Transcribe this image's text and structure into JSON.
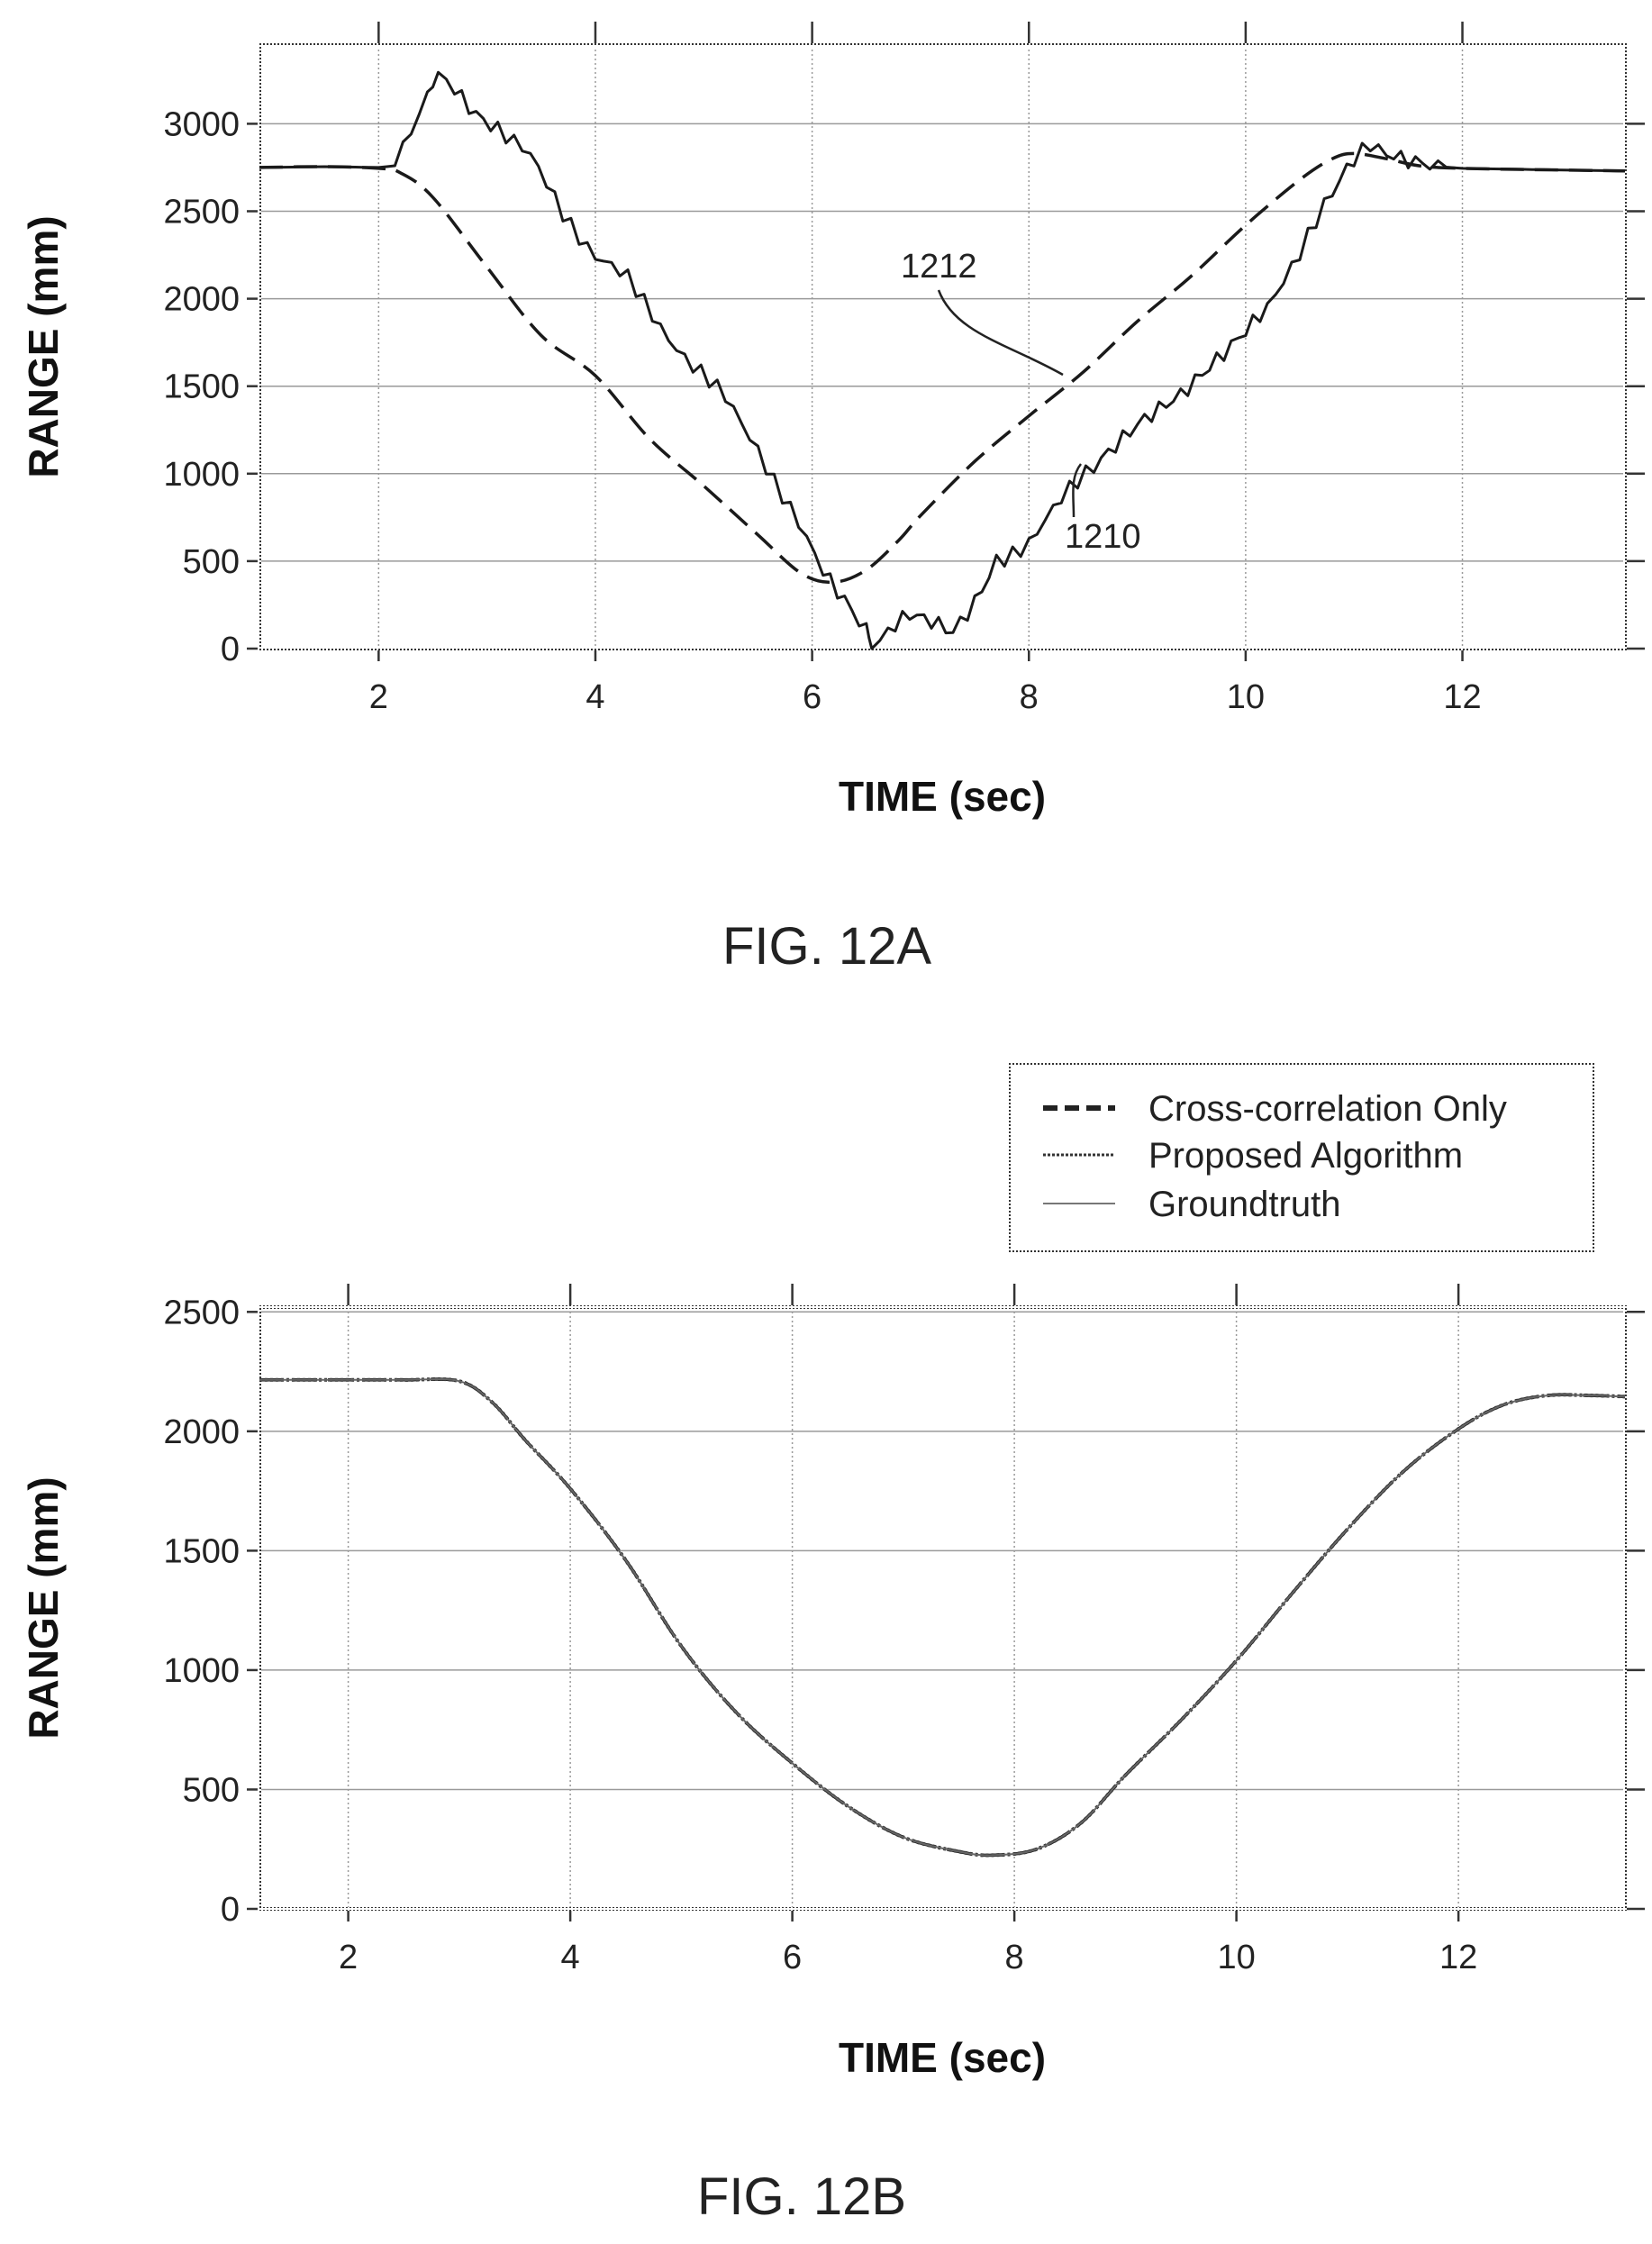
{
  "chart_data": [
    {
      "type": "line",
      "caption": "FIG. 12A",
      "xlabel": "TIME (sec)",
      "ylabel": "RANGE (mm)",
      "xlim": [
        0.9,
        13.5
      ],
      "ylim": [
        0,
        3450
      ],
      "xticks": [
        2,
        4,
        6,
        8,
        10,
        12
      ],
      "yticks": [
        0,
        500,
        1000,
        1500,
        2000,
        2500,
        3000
      ],
      "grid": true,
      "series": [
        {
          "ref": "1210",
          "style": "solid-noisy",
          "x": [
            0.9,
            1.5,
            2.0,
            2.15,
            2.3,
            2.45,
            2.55,
            2.7,
            2.9,
            3.1,
            3.4,
            3.7,
            4.0,
            4.3,
            4.6,
            4.9,
            5.2,
            5.5,
            5.8,
            6.1,
            6.3,
            6.5,
            6.55,
            6.7,
            6.9,
            7.1,
            7.3,
            7.5,
            7.7,
            8.0,
            8.3,
            8.6,
            9.0,
            9.4,
            9.8,
            10.2,
            10.5,
            10.8,
            11.0,
            11.15,
            11.3,
            11.5,
            11.7,
            12.0,
            13.0,
            13.5
          ],
          "y": [
            2750,
            2755,
            2750,
            2760,
            2930,
            3160,
            3300,
            3180,
            3050,
            2980,
            2800,
            2500,
            2250,
            2100,
            1850,
            1620,
            1420,
            1150,
            800,
            420,
            250,
            80,
            0,
            100,
            210,
            180,
            120,
            280,
            500,
            620,
            840,
            1050,
            1260,
            1430,
            1700,
            1980,
            2250,
            2600,
            2780,
            2880,
            2850,
            2800,
            2760,
            2745,
            2735,
            2730
          ]
        },
        {
          "ref": "1212",
          "style": "dashed",
          "x": [
            0.9,
            1.5,
            2.0,
            2.2,
            2.5,
            3.0,
            3.5,
            4.0,
            4.5,
            5.0,
            5.5,
            5.9,
            6.2,
            6.5,
            6.8,
            7.0,
            7.5,
            8.0,
            8.5,
            9.0,
            9.5,
            10.0,
            10.5,
            10.8,
            11.0,
            11.3,
            11.6,
            12.0,
            13.0,
            13.5
          ],
          "y": [
            2750,
            2755,
            2745,
            2720,
            2580,
            2180,
            1790,
            1560,
            1200,
            930,
            650,
            430,
            380,
            450,
            620,
            760,
            1070,
            1330,
            1580,
            1870,
            2130,
            2420,
            2680,
            2800,
            2830,
            2800,
            2760,
            2745,
            2735,
            2730
          ]
        }
      ]
    },
    {
      "type": "line",
      "caption": "FIG. 12B",
      "xlabel": "TIME (sec)",
      "ylabel": "RANGE (mm)",
      "xlim": [
        1.2,
        13.5
      ],
      "ylim": [
        0,
        2520
      ],
      "xticks": [
        2,
        4,
        6,
        8,
        10,
        12
      ],
      "yticks": [
        0,
        500,
        1000,
        1500,
        2000,
        2500
      ],
      "grid": true,
      "legend": "top-right",
      "series": [
        {
          "name": "Cross-correlation Only",
          "style": "dashed",
          "x": [
            1.2,
            2.0,
            2.5,
            3.0,
            3.3,
            3.6,
            4.0,
            4.5,
            5.0,
            5.5,
            6.0,
            6.5,
            7.0,
            7.5,
            7.8,
            8.2,
            8.6,
            9.0,
            9.5,
            10.0,
            10.5,
            11.0,
            11.5,
            12.0,
            12.4,
            12.8,
            13.2,
            13.5
          ],
          "y": [
            2215,
            2215,
            2215,
            2210,
            2120,
            1960,
            1760,
            1460,
            1100,
            820,
            610,
            430,
            300,
            240,
            225,
            250,
            360,
            560,
            790,
            1040,
            1320,
            1590,
            1830,
            2010,
            2110,
            2150,
            2150,
            2145
          ]
        },
        {
          "name": "Proposed Algorithm",
          "style": "dotted",
          "x": [
            1.2,
            2.0,
            2.5,
            3.0,
            3.3,
            3.6,
            4.0,
            4.5,
            5.0,
            5.5,
            6.0,
            6.5,
            7.0,
            7.5,
            7.8,
            8.2,
            8.6,
            9.0,
            9.5,
            10.0,
            10.5,
            11.0,
            11.5,
            12.0,
            12.4,
            12.8,
            13.2,
            13.5
          ],
          "y": [
            2215,
            2215,
            2215,
            2210,
            2120,
            1960,
            1760,
            1460,
            1100,
            820,
            610,
            430,
            300,
            240,
            225,
            250,
            360,
            560,
            790,
            1040,
            1320,
            1590,
            1830,
            2010,
            2110,
            2150,
            2150,
            2145
          ]
        },
        {
          "name": "Groundtruth",
          "style": "solid",
          "x": [
            1.2,
            2.0,
            2.5,
            3.0,
            3.3,
            3.6,
            4.0,
            4.5,
            5.0,
            5.5,
            6.0,
            6.5,
            7.0,
            7.5,
            7.8,
            8.2,
            8.6,
            9.0,
            9.5,
            10.0,
            10.5,
            11.0,
            11.5,
            12.0,
            12.4,
            12.8,
            13.2,
            13.5
          ],
          "y": [
            2215,
            2215,
            2215,
            2210,
            2120,
            1960,
            1760,
            1460,
            1100,
            820,
            610,
            430,
            300,
            240,
            225,
            250,
            360,
            560,
            790,
            1040,
            1320,
            1590,
            1830,
            2010,
            2110,
            2150,
            2150,
            2145
          ]
        }
      ]
    }
  ]
}
